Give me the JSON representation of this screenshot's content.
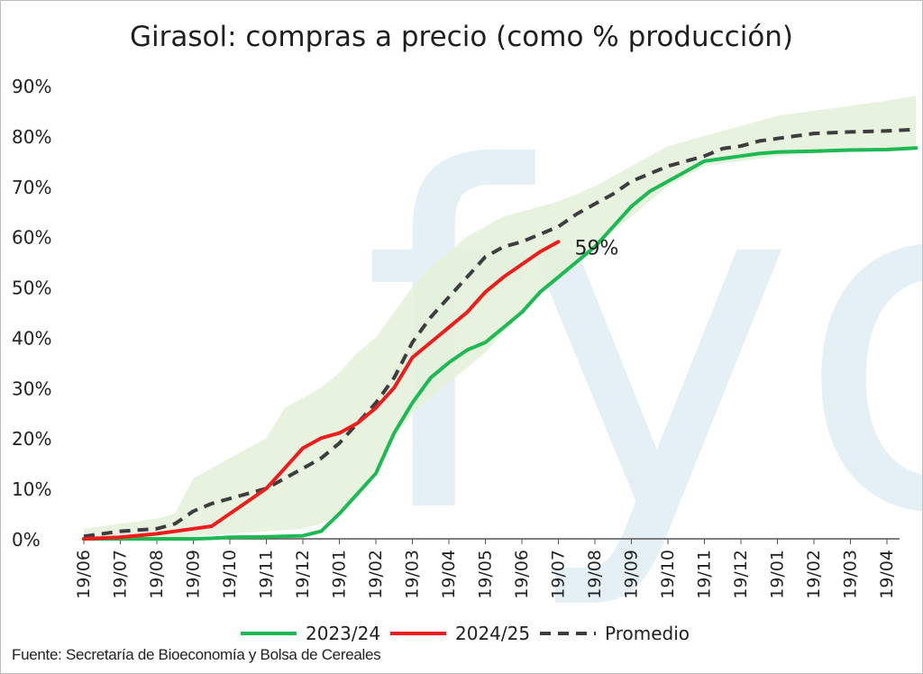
{
  "chart_data": {
    "type": "line",
    "title": "Girasol: compras a precio (como % producción)",
    "source": "Fuente: Secretaría de Bioeconomía y Bolsa de Cereales",
    "watermark": "fyo",
    "ylim": [
      0,
      90
    ],
    "y_ticks": [
      "0%",
      "10%",
      "20%",
      "30%",
      "40%",
      "50%",
      "60%",
      "70%",
      "80%",
      "90%"
    ],
    "x_ticks": [
      "19/06",
      "19/07",
      "19/08",
      "19/09",
      "19/10",
      "19/11",
      "19/12",
      "19/01",
      "19/02",
      "19/03",
      "19/04",
      "19/05",
      "19/06",
      "19/07",
      "19/08",
      "19/09",
      "19/10",
      "19/11",
      "19/12",
      "19/01",
      "19/02",
      "19/03",
      "19/04"
    ],
    "x_range": [
      0,
      22.8
    ],
    "legend_position": "bottom",
    "grid": false,
    "series": [
      {
        "name": "2023/24",
        "color": "#1db954",
        "style": "solid",
        "points": [
          [
            0,
            0
          ],
          [
            1,
            0
          ],
          [
            2,
            0
          ],
          [
            3,
            0
          ],
          [
            3.5,
            0.1
          ],
          [
            4,
            0.3
          ],
          [
            5,
            0.4
          ],
          [
            6,
            0.6
          ],
          [
            6.5,
            1.5
          ],
          [
            7,
            5
          ],
          [
            7.5,
            9
          ],
          [
            8,
            13
          ],
          [
            8.5,
            21
          ],
          [
            9,
            27
          ],
          [
            9.5,
            32
          ],
          [
            10,
            35
          ],
          [
            10.5,
            37.5
          ],
          [
            11,
            39
          ],
          [
            11.5,
            42
          ],
          [
            12,
            45
          ],
          [
            12.5,
            49
          ],
          [
            13,
            52
          ],
          [
            13.5,
            55
          ],
          [
            14,
            58
          ],
          [
            14.5,
            62
          ],
          [
            15,
            66
          ],
          [
            15.5,
            69
          ],
          [
            16,
            71
          ],
          [
            16.5,
            73
          ],
          [
            17,
            75
          ],
          [
            17.5,
            75.5
          ],
          [
            18,
            76
          ],
          [
            18.5,
            76.5
          ],
          [
            19,
            76.8
          ],
          [
            20,
            77
          ],
          [
            21,
            77.2
          ],
          [
            22,
            77.3
          ],
          [
            22.8,
            77.6
          ]
        ]
      },
      {
        "name": "2024/25",
        "color": "#ee1c1c",
        "style": "solid",
        "points": [
          [
            0,
            0
          ],
          [
            1,
            0.3
          ],
          [
            2,
            1
          ],
          [
            3,
            2
          ],
          [
            3.5,
            2.5
          ],
          [
            4,
            5
          ],
          [
            4.5,
            7.5
          ],
          [
            5,
            10
          ],
          [
            5.5,
            14
          ],
          [
            6,
            18
          ],
          [
            6.5,
            20
          ],
          [
            7,
            21
          ],
          [
            7.5,
            23
          ],
          [
            8,
            26
          ],
          [
            8.5,
            30
          ],
          [
            9,
            36
          ],
          [
            9.5,
            39
          ],
          [
            10,
            42
          ],
          [
            10.5,
            45
          ],
          [
            11,
            49
          ],
          [
            11.5,
            52
          ],
          [
            12,
            54.5
          ],
          [
            12.5,
            57
          ],
          [
            13,
            59
          ]
        ]
      },
      {
        "name": "Promedio",
        "color": "#3d3d3d",
        "style": "dashed",
        "points": [
          [
            0,
            0.5
          ],
          [
            1,
            1.5
          ],
          [
            2,
            2
          ],
          [
            2.5,
            3
          ],
          [
            3,
            5.5
          ],
          [
            3.5,
            7
          ],
          [
            4,
            8
          ],
          [
            5,
            10
          ],
          [
            6,
            14
          ],
          [
            6.5,
            16
          ],
          [
            7,
            19
          ],
          [
            7.5,
            23
          ],
          [
            8,
            27
          ],
          [
            8.5,
            32
          ],
          [
            9,
            39
          ],
          [
            9.5,
            44
          ],
          [
            10,
            48
          ],
          [
            10.5,
            52
          ],
          [
            11,
            56
          ],
          [
            11.5,
            58
          ],
          [
            12,
            59
          ],
          [
            12.5,
            60.5
          ],
          [
            13,
            62
          ],
          [
            13.5,
            64.5
          ],
          [
            14,
            66.5
          ],
          [
            14.5,
            68.5
          ],
          [
            15,
            71
          ],
          [
            15.5,
            72.5
          ],
          [
            16,
            74
          ],
          [
            16.5,
            75
          ],
          [
            17,
            76
          ],
          [
            17.5,
            77.5
          ],
          [
            18,
            78
          ],
          [
            18.5,
            79
          ],
          [
            19,
            79.5
          ],
          [
            19.5,
            80
          ],
          [
            20,
            80.5
          ],
          [
            21,
            80.8
          ],
          [
            22,
            81
          ],
          [
            22.8,
            81.3
          ]
        ]
      }
    ],
    "band": {
      "color": "#e3f1d8",
      "upper": [
        [
          0,
          2
        ],
        [
          1,
          3
        ],
        [
          2,
          4
        ],
        [
          2.5,
          5
        ],
        [
          3,
          12
        ],
        [
          3.5,
          14
        ],
        [
          4,
          16
        ],
        [
          4.5,
          18
        ],
        [
          5,
          20
        ],
        [
          5.5,
          26
        ],
        [
          6,
          28
        ],
        [
          6.5,
          30
        ],
        [
          7,
          33
        ],
        [
          7.5,
          37
        ],
        [
          8,
          40
        ],
        [
          8.5,
          45
        ],
        [
          9,
          50
        ],
        [
          9.5,
          54
        ],
        [
          10,
          57
        ],
        [
          10.5,
          60
        ],
        [
          11,
          62
        ],
        [
          11.5,
          64
        ],
        [
          12,
          65
        ],
        [
          12.5,
          66
        ],
        [
          13,
          67
        ],
        [
          14,
          70
        ],
        [
          15,
          74
        ],
        [
          16,
          78
        ],
        [
          17,
          80
        ],
        [
          18,
          82
        ],
        [
          19,
          84
        ],
        [
          20,
          85
        ],
        [
          21,
          86
        ],
        [
          22,
          87
        ],
        [
          22.8,
          88
        ]
      ],
      "lower": [
        [
          0,
          0
        ],
        [
          2,
          0
        ],
        [
          3,
          0.5
        ],
        [
          4,
          1
        ],
        [
          5,
          1.5
        ],
        [
          6,
          2
        ],
        [
          6.5,
          3
        ],
        [
          7,
          5
        ],
        [
          7.5,
          9
        ],
        [
          8,
          14
        ],
        [
          8.5,
          20
        ],
        [
          9,
          25
        ],
        [
          9.5,
          28
        ],
        [
          10,
          31
        ],
        [
          10.5,
          34
        ],
        [
          11,
          37
        ],
        [
          11.5,
          41
        ],
        [
          12,
          45
        ],
        [
          12.5,
          49
        ],
        [
          13,
          52
        ],
        [
          13.5,
          55
        ],
        [
          14,
          58
        ],
        [
          14.5,
          61
        ],
        [
          15,
          64
        ],
        [
          15.5,
          67
        ],
        [
          16,
          70
        ],
        [
          16.5,
          72
        ],
        [
          17,
          74
        ],
        [
          18,
          75
        ],
        [
          19,
          76
        ],
        [
          20,
          76.5
        ],
        [
          21,
          77
        ],
        [
          22,
          77.2
        ],
        [
          22.8,
          77.4
        ]
      ]
    },
    "annotation": {
      "text": "59%",
      "x": 13,
      "y": 59
    }
  }
}
